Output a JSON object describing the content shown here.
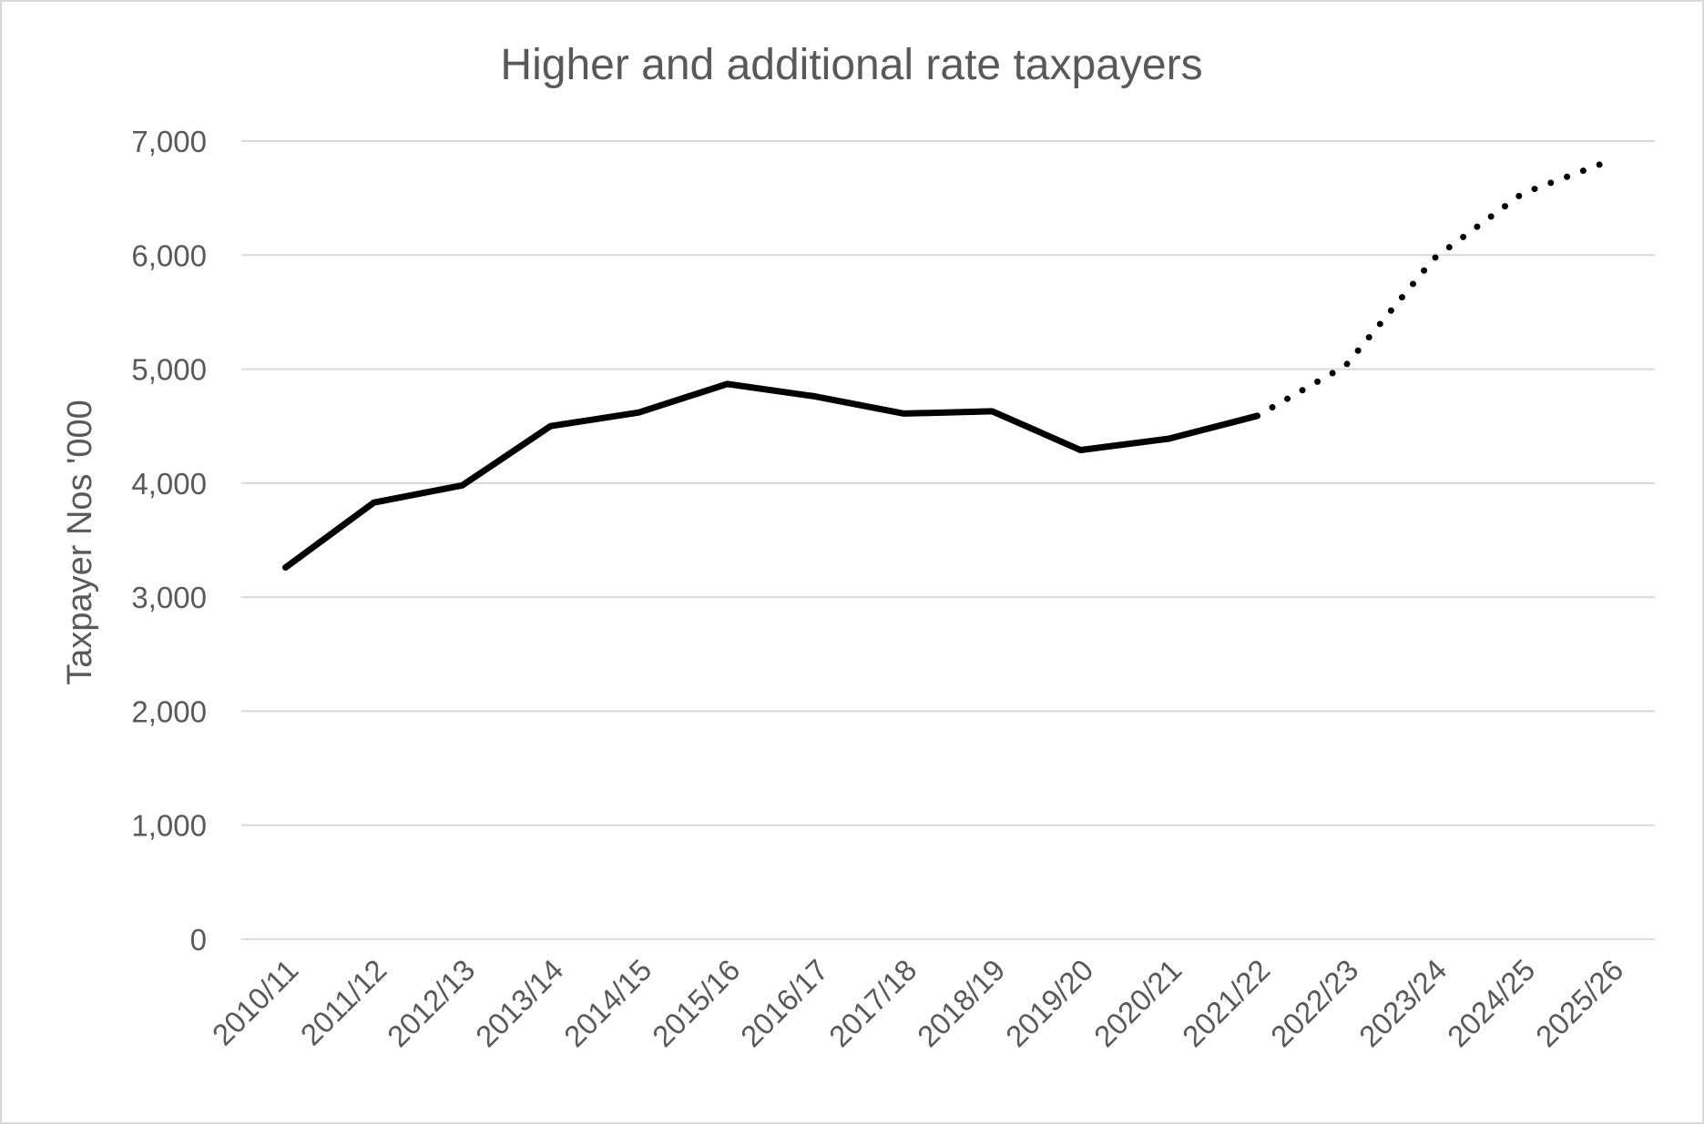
{
  "chart_data": {
    "type": "line",
    "title": "Higher and additional rate taxpayers",
    "xlabel": "",
    "ylabel": "Taxpayer Nos '000",
    "ylim": [
      0,
      7000
    ],
    "yticks": [
      0,
      1000,
      2000,
      3000,
      4000,
      5000,
      6000,
      7000
    ],
    "ytick_labels": [
      "0",
      "1,000",
      "2,000",
      "3,000",
      "4,000",
      "5,000",
      "6,000",
      "7,000"
    ],
    "grid": "horizontal",
    "legend": "none",
    "categories": [
      "2010/11",
      "2011/12",
      "2012/13",
      "2013/14",
      "2014/15",
      "2015/16",
      "2016/17",
      "2017/18",
      "2018/19",
      "2019/20",
      "2020/21",
      "2021/22",
      "2022/23",
      "2023/24",
      "2024/25",
      "2025/26"
    ],
    "series": [
      {
        "values": [
          3260,
          3830,
          3980,
          4500,
          4620,
          4870,
          4760,
          4610,
          4630,
          4290,
          4390,
          4590,
          5030,
          5970,
          6540,
          6830
        ],
        "color": "#000000",
        "solid_through": "2021/22",
        "dotted_from": "2021/22"
      }
    ]
  }
}
